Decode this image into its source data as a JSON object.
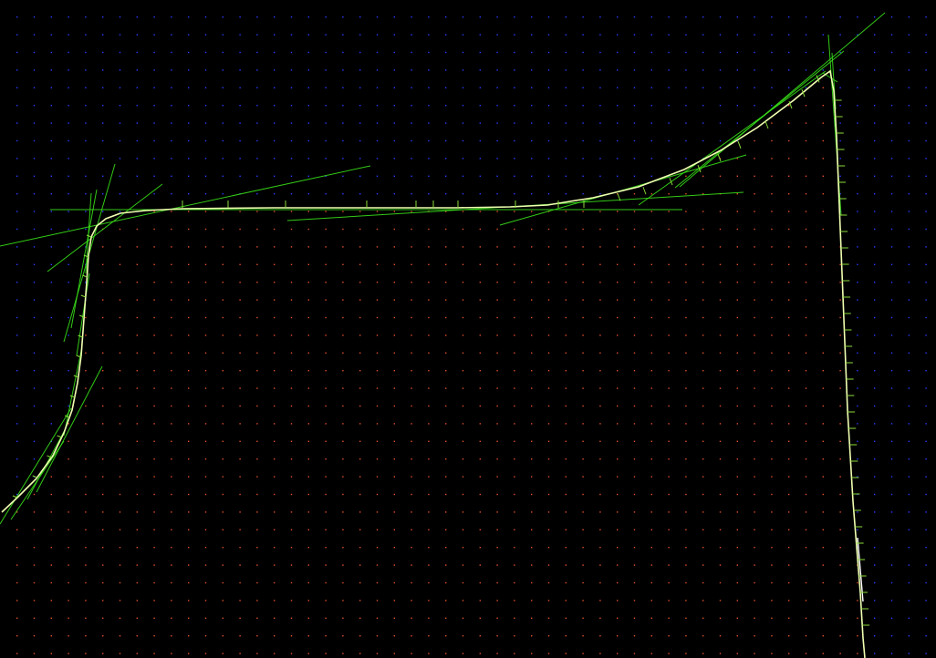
{
  "canvas": {
    "background": "#000000",
    "grid_outside_color": "#2a3cff",
    "grid_inside_color": "#e0502a",
    "curve_color": "#f0ffb0",
    "tangent_color": "#39e01a",
    "tick_color": "#8bdc3a",
    "tail_color": "#ffffff"
  }
}
